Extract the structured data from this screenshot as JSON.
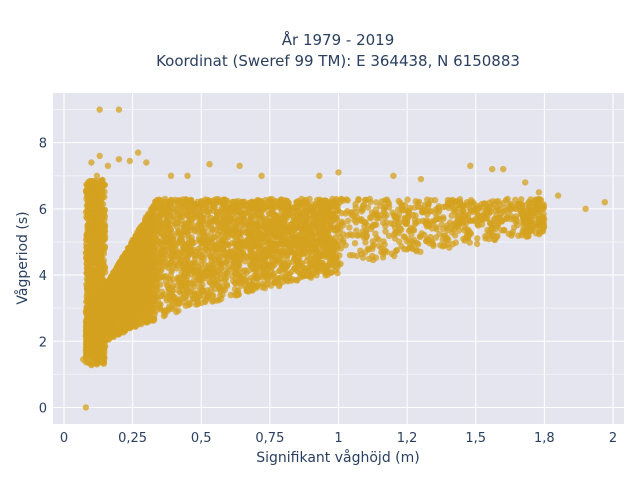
{
  "chart_data": {
    "type": "scatter",
    "title_line1": "År 1979 - 2019",
    "title_line2": "Koordinat (Sweref 99 TM): E 364438, N 6150883",
    "xlabel": "Signifikant våghöjd (m)",
    "ylabel": "Vågperiod (s)",
    "xlim": [
      -0.04,
      2.04
    ],
    "ylim": [
      -0.5,
      9.5
    ],
    "x_ticks": [
      0,
      0.25,
      0.5,
      0.75,
      1,
      1.25,
      1.5,
      1.75,
      2
    ],
    "x_tick_labels": [
      "0",
      "0,25",
      "0,5",
      "0,75",
      "1",
      "1,2",
      "1,5",
      "1,8",
      "2"
    ],
    "y_ticks": [
      0,
      2,
      4,
      6,
      8
    ],
    "y_tick_labels": [
      "0",
      "2",
      "4",
      "6",
      "8"
    ],
    "grid": true,
    "marker_color": "#D4A21F",
    "background_color": "#E5E5EF",
    "series": [
      {
        "points": [
          [
            0.07,
            1.45
          ],
          [
            0.08,
            1.5
          ],
          [
            0.09,
            1.35
          ],
          [
            0.1,
            1.28
          ],
          [
            0.12,
            1.3
          ],
          [
            0.08,
            0.0
          ],
          [
            0.13,
            9.0
          ],
          [
            0.2,
            9.0
          ],
          [
            0.1,
            7.4
          ],
          [
            0.13,
            7.6
          ],
          [
            0.16,
            7.3
          ],
          [
            0.12,
            7.0
          ],
          [
            0.2,
            7.5
          ],
          [
            0.24,
            7.45
          ],
          [
            0.27,
            7.7
          ],
          [
            0.3,
            7.4
          ],
          [
            0.39,
            7.0
          ],
          [
            0.45,
            7.0
          ],
          [
            0.53,
            7.35
          ],
          [
            0.64,
            7.3
          ],
          [
            0.72,
            7.0
          ],
          [
            0.93,
            7.0
          ],
          [
            1.0,
            7.1
          ],
          [
            1.2,
            7.0
          ],
          [
            1.3,
            6.9
          ],
          [
            1.48,
            7.3
          ],
          [
            1.56,
            7.2
          ],
          [
            1.6,
            7.2
          ],
          [
            1.68,
            6.8
          ],
          [
            1.73,
            6.5
          ],
          [
            1.8,
            6.4
          ],
          [
            1.9,
            6.0
          ],
          [
            1.97,
            6.2
          ]
        ]
      }
    ]
  }
}
